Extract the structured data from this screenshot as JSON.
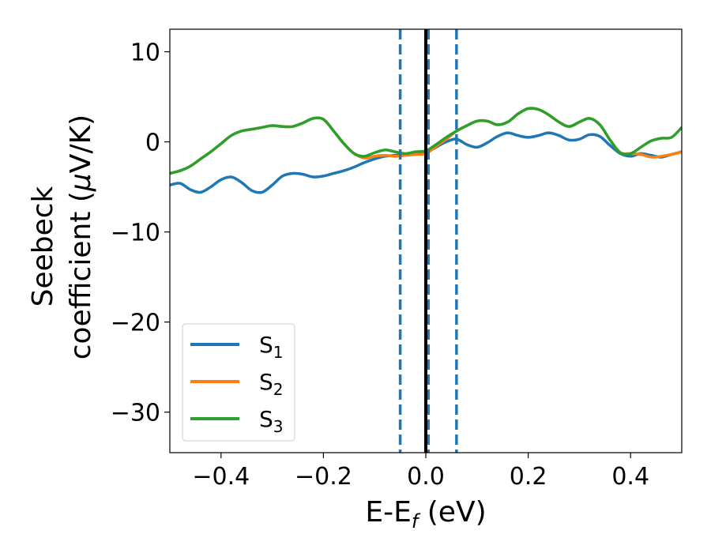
{
  "chart_data": {
    "type": "line",
    "xlabel_main": "E-E",
    "xlabel_sub": "f",
    "xlabel_unit": " (eV)",
    "ylabel_line1": "Seebeck",
    "ylabel_line2_prefix": "coefficient  (",
    "ylabel_mu": "μ",
    "ylabel_line2_suffix": "V/K)",
    "xlim": [
      -0.5,
      0.5
    ],
    "ylim": [
      -34.5,
      12.5
    ],
    "xticks": [
      -0.4,
      -0.2,
      0.0,
      0.2,
      0.4
    ],
    "xtick_labels": [
      "−0.4",
      "−0.2",
      "0.0",
      "0.2",
      "0.4"
    ],
    "yticks": [
      10,
      0,
      -10,
      -20,
      -30
    ],
    "ytick_labels": [
      "10",
      "0",
      "−10",
      "−20",
      "−30"
    ],
    "vlines": [
      {
        "x": -0.05,
        "style": "dashed",
        "color": "#1f77b4"
      },
      {
        "x": 0.005,
        "style": "dashed",
        "color": "#1f77b4"
      },
      {
        "x": 0.06,
        "style": "dashed",
        "color": "#1f77b4"
      },
      {
        "x": 0.0,
        "style": "solid",
        "color": "#000000"
      }
    ],
    "legend_position": "lower-left",
    "series": [
      {
        "name": "S",
        "sub": "1",
        "color": "#1f77b4",
        "points": [
          [
            -0.5,
            -4.8
          ],
          [
            -0.48,
            -4.6
          ],
          [
            -0.46,
            -5.3
          ],
          [
            -0.44,
            -5.6
          ],
          [
            -0.42,
            -5.0
          ],
          [
            -0.4,
            -4.2
          ],
          [
            -0.38,
            -3.9
          ],
          [
            -0.36,
            -4.5
          ],
          [
            -0.34,
            -5.4
          ],
          [
            -0.32,
            -5.6
          ],
          [
            -0.3,
            -4.8
          ],
          [
            -0.28,
            -3.8
          ],
          [
            -0.26,
            -3.5
          ],
          [
            -0.24,
            -3.6
          ],
          [
            -0.22,
            -3.9
          ],
          [
            -0.2,
            -3.8
          ],
          [
            -0.18,
            -3.5
          ],
          [
            -0.16,
            -3.2
          ],
          [
            -0.14,
            -2.8
          ],
          [
            -0.12,
            -2.3
          ],
          [
            -0.1,
            -1.9
          ],
          [
            -0.08,
            -1.6
          ],
          [
            -0.06,
            -1.5
          ],
          [
            -0.04,
            -1.4
          ],
          [
            -0.02,
            -1.3
          ],
          [
            0.0,
            -1.2
          ],
          [
            0.02,
            -0.6
          ],
          [
            0.04,
            0.0
          ],
          [
            0.06,
            0.3
          ],
          [
            0.08,
            -0.3
          ],
          [
            0.1,
            -0.6
          ],
          [
            0.12,
            -0.1
          ],
          [
            0.14,
            0.6
          ],
          [
            0.16,
            1.0
          ],
          [
            0.18,
            0.7
          ],
          [
            0.2,
            0.5
          ],
          [
            0.22,
            0.7
          ],
          [
            0.24,
            1.0
          ],
          [
            0.26,
            0.7
          ],
          [
            0.28,
            0.2
          ],
          [
            0.3,
            0.3
          ],
          [
            0.32,
            0.8
          ],
          [
            0.34,
            0.6
          ],
          [
            0.36,
            -0.4
          ],
          [
            0.38,
            -1.3
          ],
          [
            0.4,
            -1.6
          ],
          [
            0.42,
            -1.3
          ],
          [
            0.44,
            -1.5
          ],
          [
            0.46,
            -1.7
          ],
          [
            0.48,
            -1.4
          ],
          [
            0.5,
            -1.1
          ]
        ]
      },
      {
        "name": "S",
        "sub": "2",
        "color": "#ff7f0e",
        "points": [
          [
            -0.5,
            -3.5
          ],
          [
            -0.48,
            -3.2
          ],
          [
            -0.46,
            -2.7
          ],
          [
            -0.44,
            -1.9
          ],
          [
            -0.42,
            -1.1
          ],
          [
            -0.4,
            -0.2
          ],
          [
            -0.38,
            0.7
          ],
          [
            -0.36,
            1.2
          ],
          [
            -0.34,
            1.4
          ],
          [
            -0.32,
            1.6
          ],
          [
            -0.3,
            1.8
          ],
          [
            -0.28,
            1.7
          ],
          [
            -0.26,
            1.7
          ],
          [
            -0.24,
            2.1
          ],
          [
            -0.22,
            2.6
          ],
          [
            -0.2,
            2.5
          ],
          [
            -0.18,
            1.2
          ],
          [
            -0.16,
            -0.2
          ],
          [
            -0.14,
            -1.3
          ],
          [
            -0.12,
            -1.8
          ],
          [
            -0.1,
            -1.6
          ],
          [
            -0.08,
            -1.5
          ],
          [
            -0.06,
            -1.6
          ],
          [
            -0.04,
            -1.5
          ],
          [
            -0.02,
            -1.4
          ],
          [
            0.0,
            -1.3
          ],
          [
            0.02,
            -0.5
          ],
          [
            0.04,
            0.3
          ],
          [
            0.06,
            1.2
          ],
          [
            0.08,
            1.8
          ],
          [
            0.1,
            2.3
          ],
          [
            0.12,
            2.3
          ],
          [
            0.14,
            1.9
          ],
          [
            0.16,
            2.2
          ],
          [
            0.18,
            3.1
          ],
          [
            0.2,
            3.7
          ],
          [
            0.22,
            3.6
          ],
          [
            0.24,
            3.0
          ],
          [
            0.26,
            2.2
          ],
          [
            0.28,
            1.7
          ],
          [
            0.3,
            2.2
          ],
          [
            0.32,
            2.6
          ],
          [
            0.34,
            1.9
          ],
          [
            0.36,
            0.2
          ],
          [
            0.38,
            -1.2
          ],
          [
            0.4,
            -1.3
          ],
          [
            0.42,
            -1.4
          ],
          [
            0.44,
            -1.7
          ],
          [
            0.46,
            -1.6
          ],
          [
            0.48,
            -1.4
          ],
          [
            0.5,
            -1.1
          ]
        ]
      },
      {
        "name": "S",
        "sub": "3",
        "color": "#2ca02c",
        "points": [
          [
            -0.5,
            -3.5
          ],
          [
            -0.48,
            -3.2
          ],
          [
            -0.46,
            -2.7
          ],
          [
            -0.44,
            -1.9
          ],
          [
            -0.42,
            -1.1
          ],
          [
            -0.4,
            -0.2
          ],
          [
            -0.38,
            0.7
          ],
          [
            -0.36,
            1.2
          ],
          [
            -0.34,
            1.4
          ],
          [
            -0.32,
            1.6
          ],
          [
            -0.3,
            1.8
          ],
          [
            -0.28,
            1.7
          ],
          [
            -0.26,
            1.7
          ],
          [
            -0.24,
            2.1
          ],
          [
            -0.22,
            2.6
          ],
          [
            -0.2,
            2.5
          ],
          [
            -0.18,
            1.2
          ],
          [
            -0.16,
            -0.2
          ],
          [
            -0.14,
            -1.3
          ],
          [
            -0.12,
            -1.6
          ],
          [
            -0.1,
            -1.2
          ],
          [
            -0.08,
            -0.9
          ],
          [
            -0.06,
            -1.1
          ],
          [
            -0.04,
            -1.3
          ],
          [
            -0.02,
            -1.1
          ],
          [
            0.0,
            -1.0
          ],
          [
            0.02,
            -0.3
          ],
          [
            0.04,
            0.5
          ],
          [
            0.06,
            1.2
          ],
          [
            0.08,
            1.8
          ],
          [
            0.1,
            2.3
          ],
          [
            0.12,
            2.3
          ],
          [
            0.14,
            1.9
          ],
          [
            0.16,
            2.2
          ],
          [
            0.18,
            3.1
          ],
          [
            0.2,
            3.7
          ],
          [
            0.22,
            3.6
          ],
          [
            0.24,
            3.0
          ],
          [
            0.26,
            2.2
          ],
          [
            0.28,
            1.7
          ],
          [
            0.3,
            2.2
          ],
          [
            0.32,
            2.6
          ],
          [
            0.34,
            1.9
          ],
          [
            0.36,
            0.2
          ],
          [
            0.38,
            -1.2
          ],
          [
            0.4,
            -1.3
          ],
          [
            0.42,
            -0.6
          ],
          [
            0.44,
            0.1
          ],
          [
            0.46,
            0.4
          ],
          [
            0.48,
            0.5
          ],
          [
            0.5,
            1.6
          ]
        ]
      }
    ]
  }
}
